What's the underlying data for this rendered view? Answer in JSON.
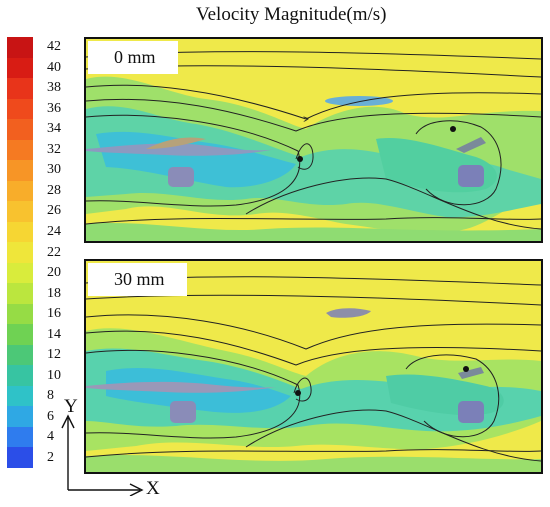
{
  "title": "Velocity Magnitude(m/s)",
  "colorbar": {
    "ticks": [
      "42",
      "40",
      "38",
      "36",
      "34",
      "32",
      "30",
      "28",
      "26",
      "24",
      "22",
      "20",
      "18",
      "16",
      "14",
      "12",
      "10",
      "8",
      "6",
      "4",
      "2"
    ],
    "colors": [
      "#c81414",
      "#d81c14",
      "#e8341a",
      "#ef4a1c",
      "#f2601f",
      "#f57a22",
      "#f79526",
      "#f8ad2a",
      "#f8c22f",
      "#f6d633",
      "#efe63a",
      "#d9ec3c",
      "#bbe63e",
      "#96dc45",
      "#6fd253",
      "#4cc877",
      "#37c4a2",
      "#2fc2c8",
      "#2fa8e4",
      "#2f7cee",
      "#2b4ee8"
    ]
  },
  "panels": [
    {
      "label": "0 mm"
    },
    {
      "label": "30 mm"
    }
  ],
  "axes": {
    "y": "Y",
    "x": "X"
  }
}
